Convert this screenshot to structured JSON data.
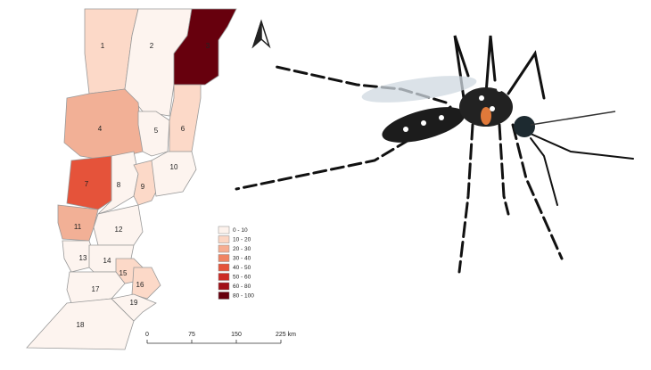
{
  "map": {
    "regions": [
      {
        "label": "1",
        "color": "#fcd9c8"
      },
      {
        "label": "2",
        "color": "#fdf4ef"
      },
      {
        "label": "3",
        "color": "#67000d"
      },
      {
        "label": "4",
        "color": "#f2b096"
      },
      {
        "label": "5",
        "color": "#fdf4ef"
      },
      {
        "label": "6",
        "color": "#fcd9c8"
      },
      {
        "label": "7",
        "color": "#e5533a"
      },
      {
        "label": "8",
        "color": "#fdf4ef"
      },
      {
        "label": "9",
        "color": "#fcd9c8"
      },
      {
        "label": "10",
        "color": "#fdf4ef"
      },
      {
        "label": "11",
        "color": "#f2b096"
      },
      {
        "label": "12",
        "color": "#fdf4ef"
      },
      {
        "label": "13",
        "color": "#fdf4ef"
      },
      {
        "label": "14",
        "color": "#fdf4ef"
      },
      {
        "label": "15",
        "color": "#fcd9c8"
      },
      {
        "label": "16",
        "color": "#fcd9c8"
      },
      {
        "label": "17",
        "color": "#fdf4ef"
      },
      {
        "label": "18",
        "color": "#fdf4ef"
      },
      {
        "label": "19",
        "color": "#fdf4ef"
      }
    ],
    "legend": [
      {
        "label": "0 - 10",
        "color": "#fdf2ec"
      },
      {
        "label": "10 - 20",
        "color": "#fcd5c2"
      },
      {
        "label": "20 - 30",
        "color": "#f7ad91"
      },
      {
        "label": "30 - 40",
        "color": "#f08463"
      },
      {
        "label": "40 - 50",
        "color": "#e5533a"
      },
      {
        "label": "50 - 60",
        "color": "#cc2a25"
      },
      {
        "label": "60 - 80",
        "color": "#a10f17"
      },
      {
        "label": "80 - 100",
        "color": "#67000d"
      }
    ],
    "scale_bar": [
      "0",
      "75",
      "150",
      "225 km"
    ]
  }
}
